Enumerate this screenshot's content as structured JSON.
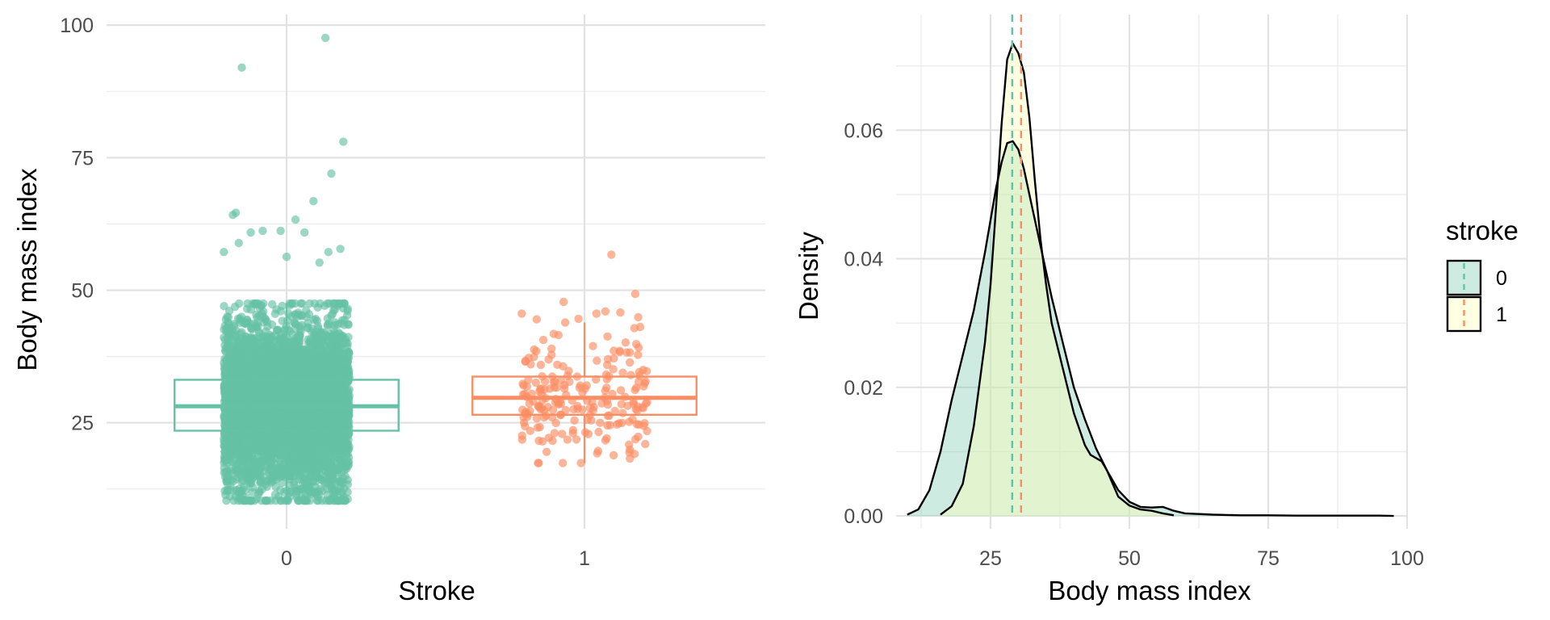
{
  "chart_data": [
    {
      "type": "box",
      "xlabel": "Stroke",
      "ylabel": "Body mass index",
      "categories": [
        "0",
        "1"
      ],
      "ylim": [
        5,
        102
      ],
      "yticks": [
        25,
        50,
        75,
        100
      ],
      "grid": true,
      "jitter_points": true,
      "series": [
        {
          "category": "0",
          "color": "#66c2a5",
          "q1": 23.5,
          "median": 28.1,
          "q3": 33.1,
          "whisker_low": 10.3,
          "whisker_high": 47.5,
          "n_points": 4700,
          "outliers": [
            [
              -0.15,
              92.0
            ],
            [
              0.13,
              97.6
            ],
            [
              0.19,
              78.0
            ],
            [
              0.15,
              72.0
            ],
            [
              0.09,
              66.8
            ],
            [
              0.03,
              63.3
            ],
            [
              -0.17,
              64.6
            ],
            [
              -0.18,
              64.2
            ],
            [
              0.06,
              60.9
            ],
            [
              -0.08,
              61.2
            ],
            [
              -0.12,
              60.9
            ],
            [
              -0.02,
              61.2
            ],
            [
              0.18,
              57.8
            ],
            [
              0.14,
              57.2
            ],
            [
              -0.21,
              57.2
            ],
            [
              0.11,
              55.2
            ],
            [
              -0.16,
              58.9
            ],
            [
              0.0,
              56.3
            ]
          ]
        },
        {
          "category": "1",
          "color": "#fc8d62",
          "q1": 26.5,
          "median": 29.7,
          "q3": 33.7,
          "whisker_low": 17.4,
          "whisker_high": 43.9,
          "n_points": 209,
          "outliers": [
            [
              0.09,
              56.7
            ],
            [
              0.17,
              49.3
            ],
            [
              -0.07,
              47.8
            ],
            [
              0.07,
              46.0
            ],
            [
              -0.21,
              45.6
            ],
            [
              0.04,
              45.6
            ],
            [
              -0.16,
              44.5
            ],
            [
              0.18,
              44.9
            ],
            [
              0.12,
              45.8
            ],
            [
              -0.02,
              44.6
            ]
          ]
        }
      ]
    },
    {
      "type": "area",
      "xlabel": "Body mass index",
      "ylabel": "Density",
      "xlim": [
        8,
        100
      ],
      "ylim": [
        -0.002,
        0.078
      ],
      "xticks": [
        25,
        50,
        75,
        100
      ],
      "yticks": [
        0.0,
        0.02,
        0.04,
        0.06
      ],
      "ytick_labels": [
        "0.00",
        "0.02",
        "0.04",
        "0.06"
      ],
      "grid": true,
      "legend": {
        "title": "stroke",
        "position": "right",
        "entries": [
          "0",
          "1"
        ]
      },
      "series": [
        {
          "name": "0",
          "fill": "#66c2a5",
          "line_color": "#66c2a5",
          "mean": 28.9,
          "x": [
            10,
            12,
            14,
            16,
            18,
            20,
            22,
            24,
            26,
            27,
            28,
            29,
            30,
            31,
            32,
            33,
            34,
            36,
            38,
            40,
            42,
            44,
            46,
            48,
            50,
            52,
            54,
            56,
            58,
            60,
            65,
            70,
            75,
            80,
            85,
            90,
            95,
            97.6
          ],
          "y": [
            0.0002,
            0.001,
            0.004,
            0.01,
            0.018,
            0.025,
            0.032,
            0.041,
            0.051,
            0.055,
            0.058,
            0.0583,
            0.057,
            0.054,
            0.05,
            0.046,
            0.042,
            0.034,
            0.027,
            0.02,
            0.015,
            0.0105,
            0.007,
            0.004,
            0.0022,
            0.0014,
            0.0013,
            0.0014,
            0.0008,
            0.0004,
            0.0002,
            0.0001,
            0.0001,
            5e-05,
            5e-05,
            5e-05,
            5e-05,
            0.0
          ]
        },
        {
          "name": "1",
          "fill": "#ffffb3",
          "line_color": "#fc8d62",
          "mean": 30.5,
          "x": [
            16,
            18,
            20,
            22,
            24,
            25,
            26,
            27,
            28,
            29,
            30,
            31,
            32,
            33,
            34,
            35,
            36,
            38,
            40,
            42,
            43,
            44,
            45,
            46,
            47,
            48,
            50,
            52,
            54,
            56,
            58
          ],
          "y": [
            0.0002,
            0.0015,
            0.005,
            0.014,
            0.027,
            0.036,
            0.048,
            0.061,
            0.071,
            0.0735,
            0.072,
            0.069,
            0.062,
            0.052,
            0.043,
            0.036,
            0.03,
            0.023,
            0.016,
            0.011,
            0.0095,
            0.009,
            0.0085,
            0.007,
            0.005,
            0.003,
            0.0016,
            0.001,
            0.0008,
            0.0004,
            0.0001
          ]
        }
      ]
    }
  ]
}
